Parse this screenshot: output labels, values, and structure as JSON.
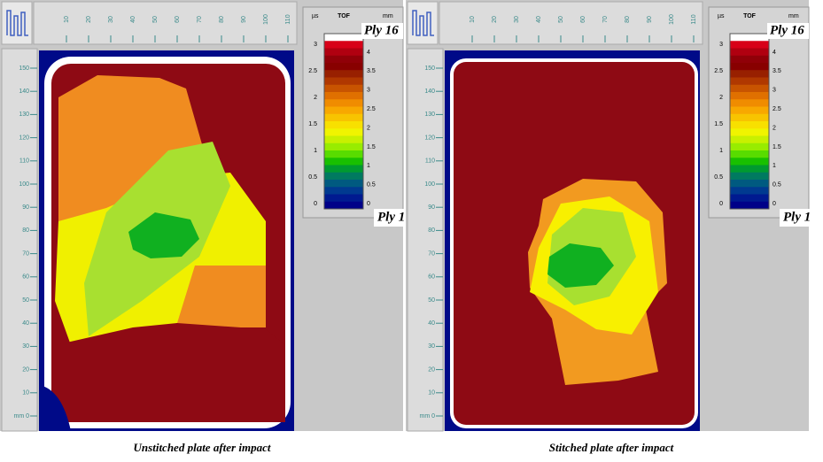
{
  "panels": [
    {
      "top_ticks": [
        "10",
        "20",
        "30",
        "40",
        "50",
        "60",
        "70",
        "80",
        "90",
        "100",
        "110"
      ],
      "left_ticks": [
        "150",
        "140",
        "130",
        "120",
        "110",
        "100",
        "90",
        "80",
        "70",
        "60",
        "50",
        "40",
        "30",
        "20",
        "10",
        "mm 0"
      ],
      "scale": {
        "unit_left": "µs",
        "title": "TOF",
        "unit_right": "mm",
        "left_ticks": [
          "3",
          "2.5",
          "2",
          "1.5",
          "1",
          "0.5",
          "0"
        ],
        "right_ticks": [
          "4",
          "3.5",
          "3",
          "2.5",
          "2",
          "1.5",
          "1",
          "0.5",
          "0"
        ]
      },
      "ply_top": "Ply 16",
      "ply_bottom": "Ply 1",
      "caption": "Unstitched plate after impact"
    },
    {
      "top_ticks": [
        "10",
        "20",
        "30",
        "40",
        "50",
        "60",
        "70",
        "80",
        "90",
        "100",
        "110"
      ],
      "left_ticks": [
        "150",
        "140",
        "130",
        "120",
        "110",
        "100",
        "90",
        "80",
        "70",
        "60",
        "50",
        "40",
        "30",
        "20",
        "10",
        "mm 0"
      ],
      "scale": {
        "unit_left": "µs",
        "title": "TOF",
        "unit_right": "mm",
        "left_ticks": [
          "3",
          "2.5",
          "2",
          "1.5",
          "1",
          "0.5",
          "0"
        ],
        "right_ticks": [
          "4",
          "3.5",
          "3",
          "2.5",
          "2",
          "1.5",
          "1",
          "0.5",
          "0"
        ]
      },
      "ply_top": "Ply 16",
      "ply_bottom": "Ply 1",
      "caption": "Stitched plate after impact"
    }
  ]
}
